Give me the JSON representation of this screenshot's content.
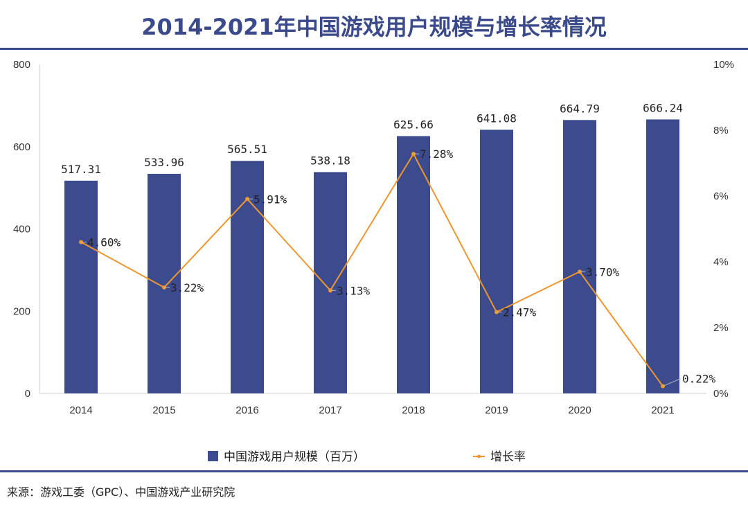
{
  "title": "2014-2021年中国游戏用户规模与增长率情况",
  "source": "来源：游戏工委（GPC）、中国游戏产业研究院",
  "chart_data": {
    "type": "bar",
    "title": "2014-2021年中国游戏用户规模与增长率情况",
    "categories": [
      "2014",
      "2015",
      "2016",
      "2017",
      "2018",
      "2019",
      "2020",
      "2021"
    ],
    "series": [
      {
        "name": "中国游戏用户规模（百万）",
        "type": "bar",
        "axis": "left",
        "color": "#3b4b8e",
        "values": [
          517.31,
          533.96,
          565.51,
          538.18,
          625.66,
          641.08,
          664.79,
          666.24
        ],
        "labels": [
          "517.31",
          "533.96",
          "565.51",
          "538.18",
          "625.66",
          "641.08",
          "664.79",
          "666.24"
        ]
      },
      {
        "name": "增长率",
        "type": "line",
        "axis": "right",
        "color": "#f0962e",
        "values": [
          4.6,
          3.22,
          5.91,
          3.13,
          7.28,
          2.47,
          3.7,
          0.22
        ],
        "labels": [
          "4.60%",
          "3.22%",
          "5.91%",
          "3.13%",
          "7.28%",
          "2.47%",
          "3.70%",
          "0.22%"
        ]
      }
    ],
    "y_left": {
      "range": [
        0,
        800
      ],
      "ticks": [
        "0",
        "200",
        "400",
        "600",
        "800"
      ]
    },
    "y_right": {
      "range": [
        0,
        10
      ],
      "ticks": [
        "0%",
        "2%",
        "4%",
        "6%",
        "8%",
        "10%"
      ]
    },
    "grid": false,
    "legend_placement": "bottom"
  }
}
